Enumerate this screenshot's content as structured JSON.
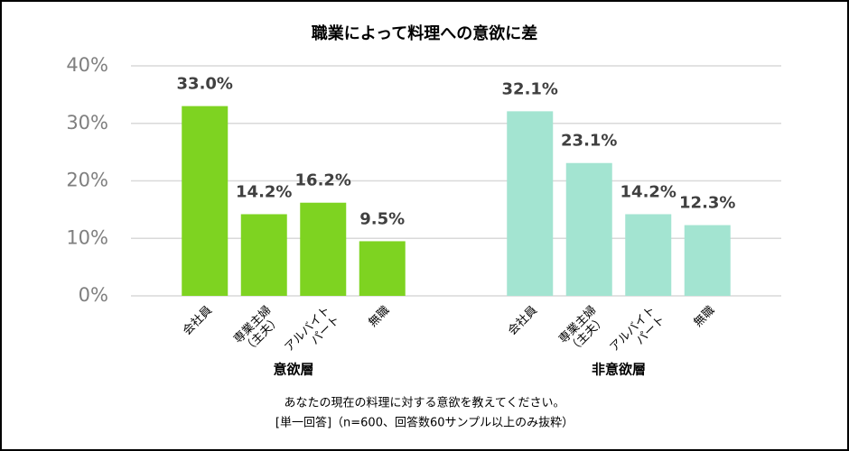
{
  "chart_data": {
    "type": "bar",
    "title": "職業によって料理への意欲に差",
    "categories": [
      [
        "会社員"
      ],
      [
        "専業主婦",
        "（主夫）"
      ],
      [
        "アルバイト",
        "パート"
      ],
      [
        "無職"
      ]
    ],
    "series": [
      {
        "name": "意欲層",
        "color": "#7ed321",
        "values": [
          33.0,
          14.2,
          16.2,
          9.5
        ],
        "value_labels": [
          "33.0%",
          "14.2%",
          "16.2%",
          "9.5%"
        ]
      },
      {
        "name": "非意欲層",
        "color": "#a3e4d1",
        "values": [
          32.1,
          23.1,
          14.2,
          12.3
        ],
        "value_labels": [
          "32.1%",
          "23.1%",
          "14.2%",
          "12.3%"
        ]
      }
    ],
    "ylim": [
      0,
      40
    ],
    "yticks": [
      {
        "value": 0,
        "label": "0%"
      },
      {
        "value": 10,
        "label": "10%"
      },
      {
        "value": 20,
        "label": "20%"
      },
      {
        "value": 30,
        "label": "30%"
      },
      {
        "value": 40,
        "label": "40%"
      }
    ],
    "grid": true,
    "notes": [
      "あなたの現在の料理に対する意欲を教えてください。",
      "[単一回答]（n=600、回答数60サンプル以上のみ抜粋）"
    ]
  }
}
